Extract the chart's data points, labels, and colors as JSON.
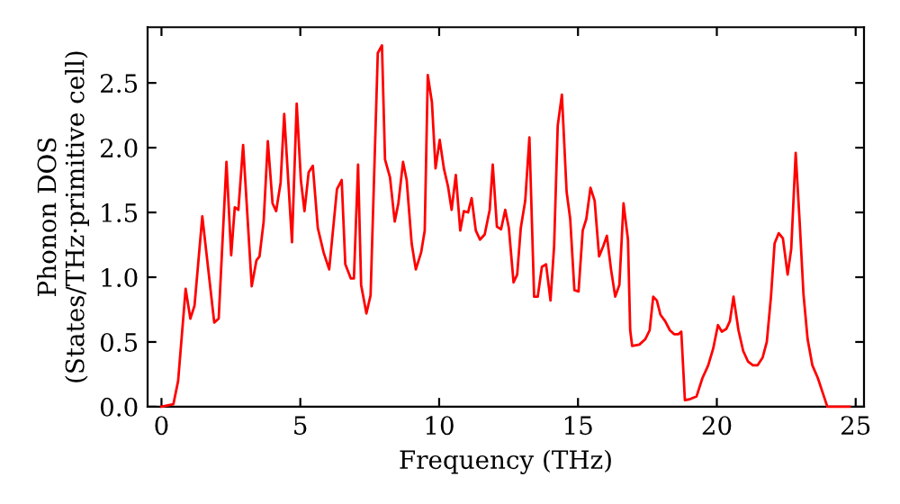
{
  "chart_data": {
    "type": "line",
    "xlabel": "Frequency (THz)",
    "ylabel": "Phonon DOS\n(States/THz·primitive cell)",
    "xlim": [
      -0.5,
      25.3
    ],
    "ylim": [
      0,
      2.93
    ],
    "xticks": [
      0,
      5,
      10,
      15,
      20,
      25
    ],
    "yticks": [
      {
        "value": 0,
        "label": "0.0"
      },
      {
        "value": 0.5,
        "label": "0.5"
      },
      {
        "value": 1,
        "label": "1.0"
      },
      {
        "value": 1.5,
        "label": "1.5"
      },
      {
        "value": 2,
        "label": "2.0"
      },
      {
        "value": 2.5,
        "label": "2.5"
      }
    ],
    "grid": false,
    "series": [
      {
        "color": "#ff0000",
        "x": [
          0,
          0.43,
          0.6,
          0.87,
          1.04,
          1.19,
          1.47,
          1.9,
          2.06,
          2.34,
          2.51,
          2.64,
          2.77,
          2.94,
          3.25,
          3.42,
          3.53,
          3.68,
          3.83,
          4.0,
          4.13,
          4.29,
          4.42,
          4.7,
          4.87,
          5.02,
          5.15,
          5.3,
          5.45,
          5.63,
          5.84,
          6.04,
          6.32,
          6.49,
          6.62,
          6.82,
          6.93,
          7.08,
          7.19,
          7.38,
          7.53,
          7.79,
          7.94,
          8.05,
          8.23,
          8.4,
          8.53,
          8.7,
          8.83,
          9.01,
          9.16,
          9.35,
          9.48,
          9.59,
          9.74,
          9.87,
          10.02,
          10.17,
          10.32,
          10.45,
          10.6,
          10.76,
          10.89,
          11.04,
          11.17,
          11.32,
          11.47,
          11.64,
          11.82,
          11.93,
          12.08,
          12.23,
          12.38,
          12.51,
          12.68,
          12.81,
          12.94,
          13.1,
          13.25,
          13.42,
          13.55,
          13.7,
          13.85,
          14.01,
          14.14,
          14.27,
          14.42,
          14.59,
          14.72,
          14.87,
          15.02,
          15.17,
          15.3,
          15.45,
          15.6,
          15.76,
          15.91,
          16.04,
          16.19,
          16.34,
          16.49,
          16.64,
          16.8,
          16.88,
          16.95,
          17.21,
          17.42,
          17.58,
          17.71,
          17.84,
          17.97,
          18.14,
          18.31,
          18.46,
          18.62,
          18.72,
          18.85,
          19.05,
          19.27,
          19.48,
          19.69,
          19.87,
          20.04,
          20.18,
          20.34,
          20.47,
          20.6,
          20.78,
          20.95,
          21.12,
          21.3,
          21.47,
          21.65,
          21.8,
          21.95,
          22.08,
          22.23,
          22.38,
          22.55,
          22.68,
          22.84,
          22.99,
          23.12,
          23.27,
          23.44,
          23.64,
          23.81,
          23.98,
          24.78
        ],
        "values": [
          0,
          0.02,
          0.2,
          0.91,
          0.68,
          0.78,
          1.47,
          0.65,
          0.68,
          1.89,
          1.17,
          1.54,
          1.52,
          2.02,
          0.93,
          1.13,
          1.16,
          1.43,
          2.05,
          1.57,
          1.51,
          1.73,
          2.26,
          1.27,
          2.34,
          1.75,
          1.51,
          1.81,
          1.86,
          1.38,
          1.19,
          1.06,
          1.68,
          1.75,
          1.1,
          0.99,
          0.99,
          1.87,
          0.94,
          0.72,
          0.86,
          2.73,
          2.79,
          1.91,
          1.77,
          1.43,
          1.57,
          1.89,
          1.75,
          1.26,
          1.06,
          1.19,
          1.36,
          2.56,
          2.35,
          1.84,
          2.06,
          1.84,
          1.7,
          1.52,
          1.79,
          1.36,
          1.51,
          1.5,
          1.61,
          1.36,
          1.29,
          1.33,
          1.52,
          1.87,
          1.39,
          1.37,
          1.52,
          1.38,
          0.96,
          1.02,
          1.38,
          1.59,
          2.08,
          0.85,
          0.85,
          1.08,
          1.1,
          0.82,
          1.24,
          2.17,
          2.41,
          1.66,
          1.45,
          0.9,
          0.89,
          1.36,
          1.45,
          1.69,
          1.59,
          1.16,
          1.24,
          1.32,
          1.06,
          0.85,
          0.94,
          1.57,
          1.29,
          0.59,
          0.47,
          0.48,
          0.52,
          0.59,
          0.85,
          0.82,
          0.71,
          0.66,
          0.59,
          0.56,
          0.56,
          0.58,
          0.05,
          0.06,
          0.08,
          0.22,
          0.32,
          0.45,
          0.63,
          0.58,
          0.6,
          0.66,
          0.85,
          0.59,
          0.43,
          0.35,
          0.32,
          0.32,
          0.38,
          0.5,
          0.85,
          1.26,
          1.34,
          1.3,
          1.02,
          1.22,
          1.96,
          1.4,
          0.87,
          0.52,
          0.32,
          0.22,
          0.11,
          0,
          0
        ]
      }
    ]
  }
}
